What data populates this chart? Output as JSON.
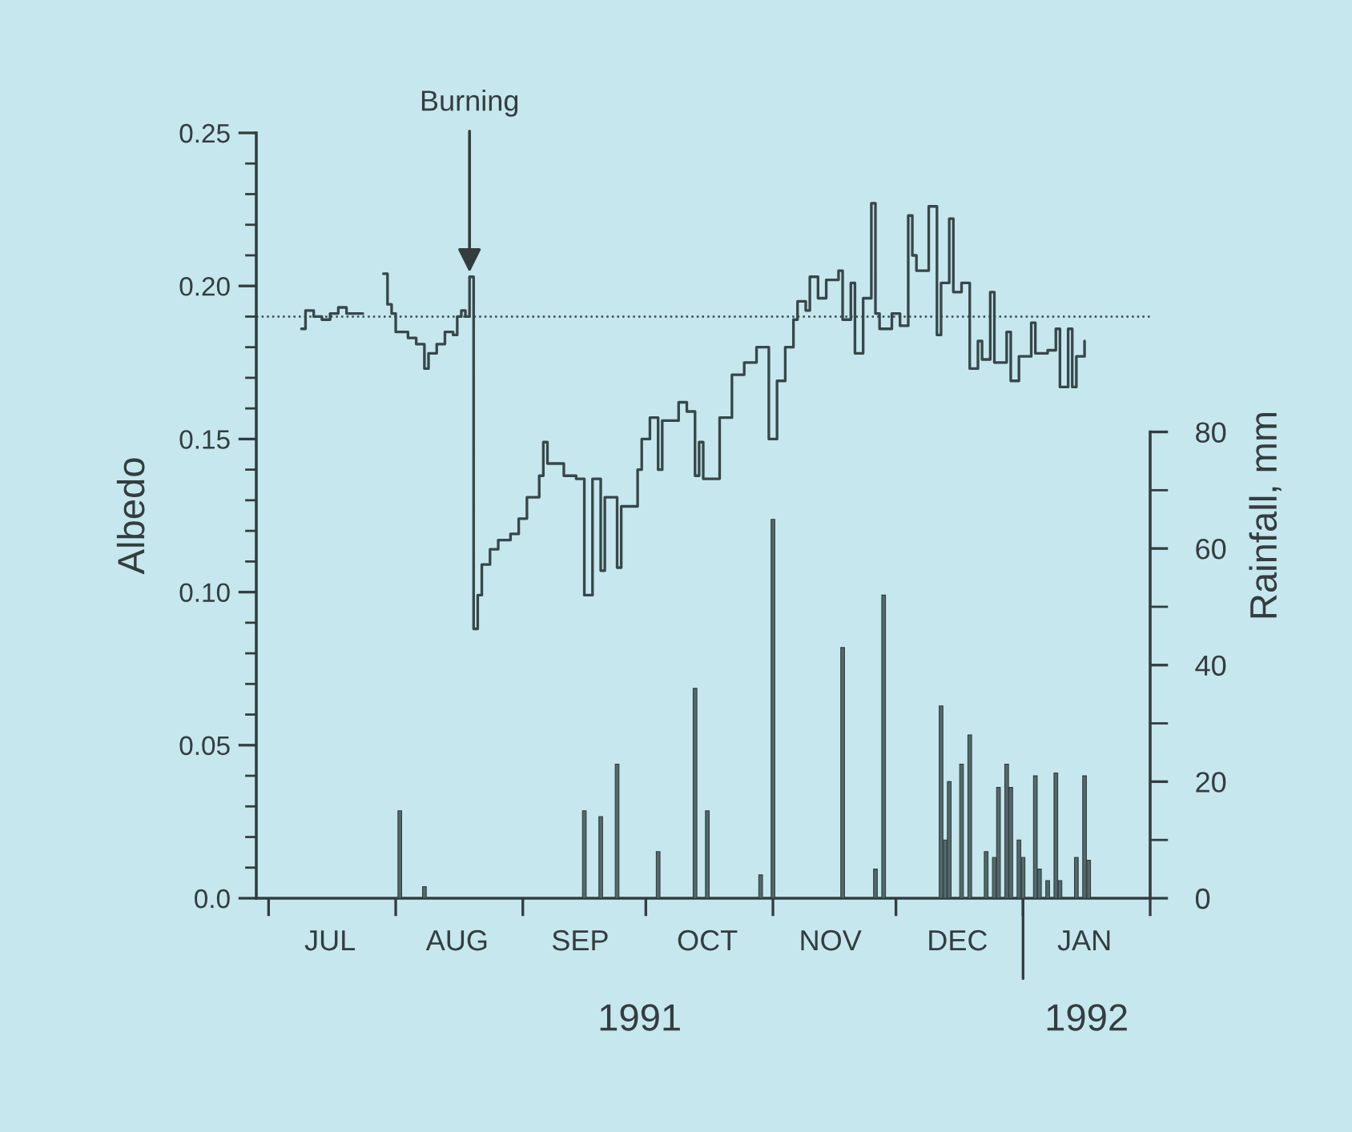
{
  "chart_data": {
    "type": "step",
    "ylabel": "Albedo",
    "y2label": "Rainfall, mm",
    "xlim": [
      "1991-06-28",
      "1992-02-01"
    ],
    "xticks": [
      {
        "value": "1991-07-01",
        "label": null
      },
      {
        "value": "1991-08-01",
        "label": null
      },
      {
        "value": "1991-09-01",
        "label": null
      },
      {
        "value": "1991-10-01",
        "label": null
      },
      {
        "value": "1991-11-01",
        "label": null
      },
      {
        "value": "1991-12-01",
        "label": null
      },
      {
        "value": "1992-01-01",
        "label": null
      },
      {
        "value": "1992-02-01",
        "label": null
      },
      {
        "value": "1991-07-16",
        "label": "JUL"
      },
      {
        "value": "1991-08-16",
        "label": "AUG"
      },
      {
        "value": "1991-09-15",
        "label": "SEP"
      },
      {
        "value": "1991-10-16",
        "label": "OCT"
      },
      {
        "value": "1991-11-15",
        "label": "NOV"
      },
      {
        "value": "1991-12-16",
        "label": "DEC"
      },
      {
        "value": "1992-01-16",
        "label": "JAN"
      }
    ],
    "ylim": [
      0,
      0.25
    ],
    "yticks": [
      {
        "value": 0,
        "label": "0.0"
      },
      0.05,
      {
        "value": 0.1,
        "label": "0.10"
      },
      0.15,
      {
        "value": 0.2,
        "label": "0.20"
      },
      0.25,
      {
        "value": 0.01,
        "label": null
      },
      {
        "value": 0.02,
        "label": null
      },
      {
        "value": 0.03,
        "label": null
      },
      {
        "value": 0.04,
        "label": null
      },
      {
        "value": 0.06,
        "label": null
      },
      {
        "value": 0.07,
        "label": null
      },
      {
        "value": 0.08,
        "label": null
      },
      {
        "value": 0.09,
        "label": null
      },
      {
        "value": 0.11,
        "label": null
      },
      {
        "value": 0.12,
        "label": null
      },
      {
        "value": 0.13,
        "label": null
      },
      {
        "value": 0.14,
        "label": null
      },
      {
        "value": 0.16,
        "label": null
      },
      {
        "value": 0.17,
        "label": null
      },
      {
        "value": 0.18,
        "label": null
      },
      {
        "value": 0.19,
        "label": null
      },
      {
        "value": 0.21,
        "label": null
      },
      {
        "value": 0.22,
        "label": null
      },
      {
        "value": 0.23,
        "label": null
      },
      {
        "value": 0.24,
        "label": null
      }
    ],
    "y2lim": [
      0,
      131.3
    ],
    "y2ticks": [
      0,
      20,
      40,
      60,
      80,
      {
        "value": 10,
        "label": null
      },
      {
        "value": 30,
        "label": null
      },
      {
        "value": 50,
        "label": null
      },
      {
        "value": 70,
        "label": null
      }
    ],
    "series": [
      {
        "color": "#37474a",
        "x": [
          "1991-07-09",
          "1991-07-10",
          "1991-07-12",
          "1991-07-14",
          "1991-07-16",
          "1991-07-18",
          "1991-07-20",
          "1991-07-24",
          "1991-07-29",
          "1991-07-30",
          "1991-07-31",
          "1991-08-01",
          "1991-08-04",
          "1991-08-06",
          "1991-08-08",
          "1991-08-09",
          "1991-08-11",
          "1991-08-13",
          "1991-08-15",
          "1991-08-16",
          "1991-08-17",
          "1991-08-18",
          "1991-08-19",
          "1991-08-20",
          "1991-08-21",
          "1991-08-22",
          "1991-08-24",
          "1991-08-26",
          "1991-08-29",
          "1991-08-31",
          "1991-09-02",
          "1991-09-05",
          "1991-09-06",
          "1991-09-07",
          "1991-09-11",
          "1991-09-14",
          "1991-09-16",
          "1991-09-18",
          "1991-09-20",
          "1991-09-21",
          "1991-09-24",
          "1991-09-25",
          "1991-09-29",
          "1991-09-30",
          "1991-10-02",
          "1991-10-04",
          "1991-10-05",
          "1991-10-09",
          "1991-10-11",
          "1991-10-13",
          "1991-10-14",
          "1991-10-15",
          "1991-10-17",
          "1991-10-19",
          "1991-10-22",
          "1991-10-25",
          "1991-10-28",
          "1991-10-30",
          "1991-10-31",
          "1991-11-02",
          "1991-11-04",
          "1991-11-06",
          "1991-11-07",
          "1991-11-09",
          "1991-11-10",
          "1991-11-12",
          "1991-11-14",
          "1991-11-17",
          "1991-11-18",
          "1991-11-20",
          "1991-11-21",
          "1991-11-23",
          "1991-11-25",
          "1991-11-26",
          "1991-11-27",
          "1991-11-30",
          "1991-12-02",
          "1991-12-04",
          "1991-12-05",
          "1991-12-06",
          "1991-12-09",
          "1991-12-11",
          "1991-12-12",
          "1991-12-14",
          "1991-12-15",
          "1991-12-17",
          "1991-12-19",
          "1991-12-21",
          "1991-12-22",
          "1991-12-24",
          "1991-12-25",
          "1991-12-28",
          "1991-12-29",
          "1991-12-31",
          "1992-01-03",
          "1992-01-04",
          "1992-01-07",
          "1992-01-09",
          "1992-01-10",
          "1992-01-12",
          "1992-01-13",
          "1992-01-14",
          "1992-01-16"
        ],
        "values": [
          0.186,
          0.192,
          0.19,
          0.189,
          0.191,
          0.193,
          0.191,
          null,
          0.204,
          0.194,
          0.191,
          0.185,
          0.183,
          0.181,
          0.173,
          0.178,
          0.181,
          0.185,
          0.184,
          0.19,
          0.192,
          0.19,
          0.203,
          0.088,
          0.099,
          0.109,
          0.114,
          0.117,
          0.119,
          0.124,
          0.131,
          0.138,
          0.149,
          0.142,
          0.138,
          0.137,
          0.099,
          0.137,
          0.107,
          0.131,
          0.108,
          0.128,
          0.14,
          0.15,
          0.157,
          0.14,
          0.156,
          0.162,
          0.159,
          0.138,
          0.149,
          0.137,
          0.137,
          0.157,
          0.171,
          0.175,
          0.18,
          0.18,
          0.15,
          0.169,
          0.18,
          0.189,
          0.195,
          0.192,
          0.203,
          0.196,
          0.202,
          0.205,
          0.189,
          0.201,
          0.178,
          0.196,
          0.227,
          0.191,
          0.186,
          0.191,
          0.187,
          0.223,
          0.21,
          0.205,
          0.226,
          0.184,
          0.201,
          0.222,
          0.198,
          0.201,
          0.173,
          0.182,
          0.176,
          0.198,
          0.175,
          0.185,
          0.169,
          0.177,
          0.188,
          0.178,
          0.179,
          0.186,
          0.167,
          0.186,
          0.167,
          0.177,
          0.182
        ]
      },
      {
        "type": "bar",
        "axis": "y2",
        "color": "#52696b",
        "x": [
          "1991-08-02",
          "1991-08-08",
          "1991-09-16",
          "1991-09-20",
          "1991-09-24",
          "1991-10-04",
          "1991-10-13",
          "1991-10-16",
          "1991-10-29",
          "1991-11-01",
          "1991-11-18",
          "1991-11-26",
          "1991-11-28",
          "1991-12-12",
          "1991-12-13",
          "1991-12-14",
          "1991-12-17",
          "1991-12-19",
          "1991-12-23",
          "1991-12-25",
          "1991-12-26",
          "1991-12-28",
          "1991-12-29",
          "1991-12-31",
          "1992-01-01",
          "1992-01-04",
          "1992-01-05",
          "1992-01-07",
          "1992-01-09",
          "1992-01-10",
          "1992-01-14",
          "1992-01-16",
          "1992-01-17"
        ],
        "values": [
          15,
          2,
          15,
          14,
          23,
          8,
          36,
          15,
          4,
          65,
          43,
          5,
          52,
          33,
          10,
          20,
          23,
          28,
          8,
          7,
          19,
          23,
          19,
          10,
          7,
          21,
          5,
          3,
          21.5,
          3,
          7,
          21,
          6.5
        ]
      }
    ],
    "ref_lines": [
      {
        "axis": "y",
        "value": 0.19,
        "line_style": "dotted",
        "color": "#37474a"
      }
    ],
    "annotations": [
      {
        "text": "Burning",
        "x": "1991-08-19",
        "y": 0.203
      },
      "1991",
      "1992"
    ]
  }
}
